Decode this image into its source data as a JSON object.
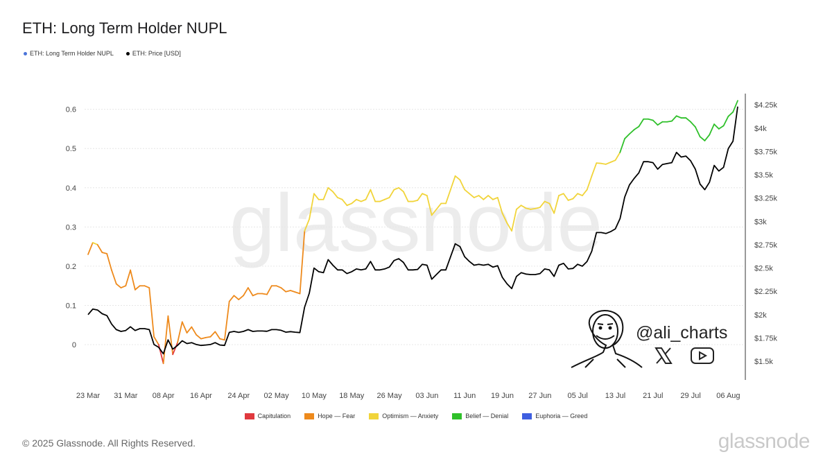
{
  "title": "ETH: Long Term Holder NUPL",
  "legend": [
    {
      "label": "ETH: Long Term Holder NUPL",
      "color": "#4a74d9"
    },
    {
      "label": "ETH: Price [USD]",
      "color": "#000000"
    }
  ],
  "band_legend": [
    {
      "label": "Capitulation",
      "color": "#e0393e"
    },
    {
      "label": "Hope — Fear",
      "color": "#ee8a1c"
    },
    {
      "label": "Optimism — Anxiety",
      "color": "#f1d43a"
    },
    {
      "label": "Belief — Denial",
      "color": "#2fc02a"
    },
    {
      "label": "Euphoria — Greed",
      "color": "#3f5fe0"
    }
  ],
  "watermark": "glassnode",
  "copyright": "© 2025 Glassnode. All Rights Reserved.",
  "brand": "glassnode",
  "author": {
    "handle": "@ali_charts",
    "icons": [
      "x-logo-icon",
      "youtube-icon"
    ]
  },
  "chart_data": {
    "type": "line",
    "x_tick_labels": [
      "23 Mar",
      "31 Mar",
      "08 Apr",
      "16 Apr",
      "24 Apr",
      "02 May",
      "10 May",
      "18 May",
      "26 May",
      "03 Jun",
      "11 Jun",
      "19 Jun",
      "27 Jun",
      "05 Jul",
      "13 Jul",
      "21 Jul",
      "29 Jul",
      "06 Aug"
    ],
    "y_left": {
      "ticks": [
        0,
        0.1,
        0.2,
        0.3,
        0.4,
        0.5,
        0.6
      ],
      "tick_labels": [
        "0",
        "0.1",
        "0.2",
        "0.3",
        "0.4",
        "0.5",
        "0.6"
      ],
      "range": [
        -0.09,
        0.64
      ]
    },
    "y_right": {
      "ticks": [
        1500,
        1750,
        2000,
        2250,
        2500,
        2750,
        3000,
        3250,
        3500,
        3750,
        4000,
        4250
      ],
      "tick_labels": [
        "$1.5k",
        "$1.75k",
        "$2k",
        "$2.25k",
        "$2.5k",
        "$2.75k",
        "$3k",
        "$3.25k",
        "$3.5k",
        "$3.75k",
        "$4k",
        "$4.25k"
      ],
      "range": [
        1300,
        4370
      ]
    },
    "x_start_date": "2025-03-23",
    "grid": "horizontal",
    "series": [
      {
        "name": "ETH: Long Term Holder NUPL",
        "axis": "left",
        "colored_by_band": true,
        "values": [
          0.23,
          0.26,
          0.255,
          0.235,
          0.232,
          0.19,
          0.155,
          0.145,
          0.15,
          0.19,
          0.14,
          0.15,
          0.15,
          0.145,
          0.02,
          0.0,
          -0.048,
          0.073,
          -0.025,
          0.005,
          0.058,
          0.03,
          0.045,
          0.025,
          0.015,
          0.018,
          0.02,
          0.033,
          0.015,
          0.012,
          0.11,
          0.125,
          0.115,
          0.125,
          0.145,
          0.125,
          0.13,
          0.13,
          0.128,
          0.15,
          0.15,
          0.145,
          0.135,
          0.138,
          0.134,
          0.13,
          0.29,
          0.32,
          0.385,
          0.37,
          0.37,
          0.4,
          0.39,
          0.375,
          0.37,
          0.355,
          0.36,
          0.37,
          0.365,
          0.37,
          0.395,
          0.365,
          0.365,
          0.37,
          0.375,
          0.395,
          0.4,
          0.39,
          0.365,
          0.365,
          0.368,
          0.385,
          0.38,
          0.33,
          0.345,
          0.36,
          0.36,
          0.395,
          0.43,
          0.42,
          0.395,
          0.385,
          0.375,
          0.38,
          0.37,
          0.38,
          0.37,
          0.375,
          0.335,
          0.31,
          0.29,
          0.345,
          0.355,
          0.348,
          0.345,
          0.347,
          0.35,
          0.365,
          0.36,
          0.335,
          0.38,
          0.385,
          0.368,
          0.372,
          0.385,
          0.38,
          0.395,
          0.43,
          0.463,
          0.462,
          0.46,
          0.465,
          0.47,
          0.49,
          0.525,
          0.537,
          0.548,
          0.556,
          0.575,
          0.575,
          0.572,
          0.56,
          0.568,
          0.568,
          0.57,
          0.583,
          0.578,
          0.578,
          0.568,
          0.555,
          0.53,
          0.52,
          0.535,
          0.562,
          0.55,
          0.558,
          0.582,
          0.593,
          0.622
        ]
      },
      {
        "name": "ETH: Price [USD]",
        "axis": "right",
        "color": "#000000",
        "values": [
          2000,
          2060,
          2050,
          2010,
          1990,
          1900,
          1840,
          1820,
          1830,
          1870,
          1830,
          1850,
          1850,
          1840,
          1680,
          1650,
          1580,
          1730,
          1630,
          1670,
          1720,
          1690,
          1700,
          1680,
          1670,
          1675,
          1680,
          1700,
          1675,
          1670,
          1810,
          1820,
          1810,
          1820,
          1840,
          1820,
          1825,
          1825,
          1822,
          1840,
          1840,
          1832,
          1812,
          1818,
          1812,
          1808,
          2080,
          2230,
          2500,
          2460,
          2450,
          2590,
          2530,
          2480,
          2480,
          2440,
          2460,
          2490,
          2480,
          2490,
          2570,
          2480,
          2480,
          2490,
          2510,
          2580,
          2600,
          2560,
          2480,
          2480,
          2485,
          2540,
          2530,
          2380,
          2430,
          2480,
          2480,
          2620,
          2760,
          2730,
          2620,
          2570,
          2530,
          2540,
          2530,
          2540,
          2510,
          2525,
          2400,
          2330,
          2280,
          2410,
          2450,
          2435,
          2430,
          2430,
          2440,
          2490,
          2480,
          2410,
          2530,
          2550,
          2490,
          2495,
          2540,
          2520,
          2570,
          2680,
          2880,
          2880,
          2870,
          2890,
          2920,
          3030,
          3260,
          3390,
          3460,
          3520,
          3640,
          3640,
          3630,
          3560,
          3610,
          3620,
          3630,
          3740,
          3690,
          3700,
          3650,
          3560,
          3400,
          3340,
          3420,
          3600,
          3540,
          3580,
          3780,
          3860,
          4230
        ]
      }
    ]
  }
}
